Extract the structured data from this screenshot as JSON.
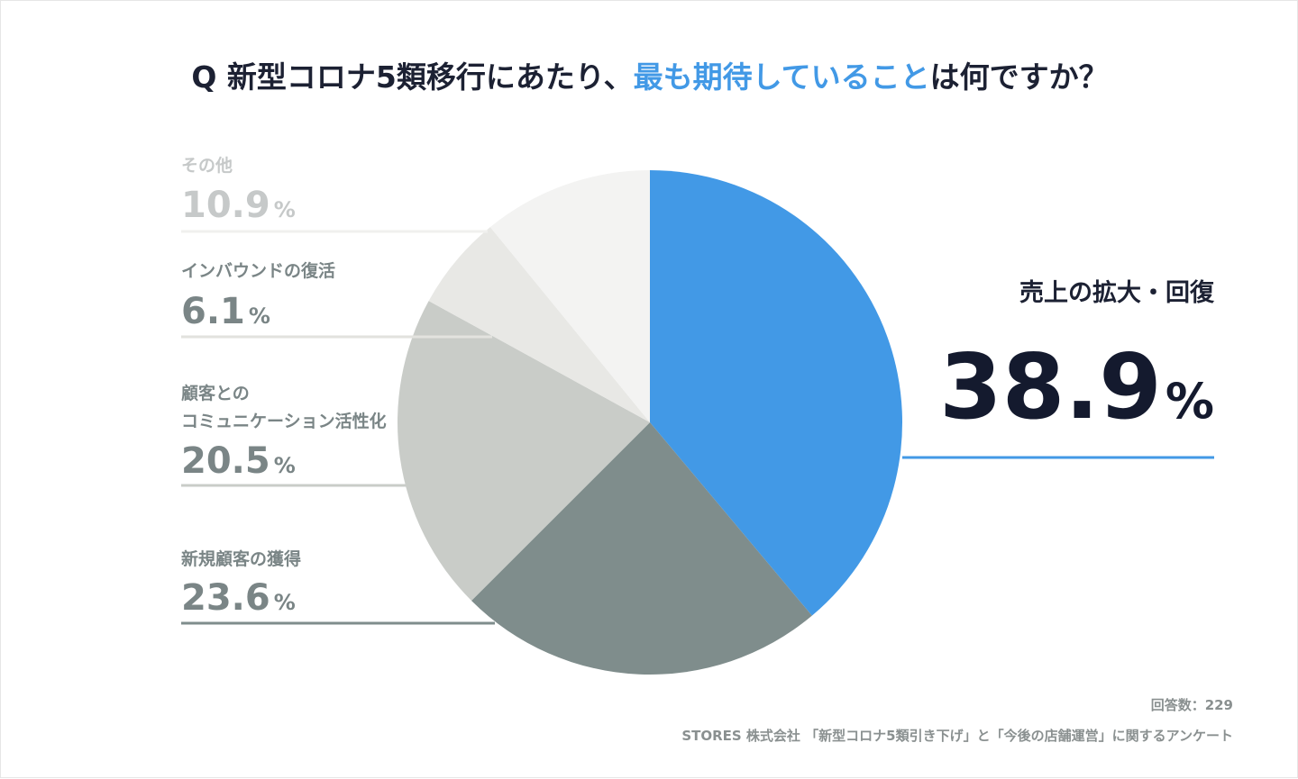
{
  "chart_data": {
    "type": "pie",
    "title": {
      "prefix": "Q 新型コロナ5類移行にあたり、",
      "highlight": "最も期待していること",
      "suffix": "は何ですか？"
    },
    "slices": [
      {
        "label": "売上の拡大・回復",
        "value": 38.9,
        "display": "38.9",
        "color": "#4299e6"
      },
      {
        "label": "新規顧客の獲得",
        "value": 23.6,
        "display": "23.6",
        "color": "#7f8d8c"
      },
      {
        "label": "顧客との\nコミュニケーション活性化",
        "value": 20.5,
        "display": "20.5",
        "color": "#c9ccc8"
      },
      {
        "label": "インバウンドの復活",
        "value": 6.1,
        "display": "6.1",
        "color": "#e8e8e5"
      },
      {
        "label": "その他",
        "value": 10.9,
        "display": "10.9",
        "color": "#f3f3f2"
      }
    ],
    "unit": "%",
    "colors": {
      "title": "#1c2133",
      "highlight": "#4299e6",
      "main_value": "#141a2e",
      "label_text": [
        "#1c2133",
        "#7a8586",
        "#7a8586",
        "#7a8586",
        "#c6c9c9"
      ],
      "line": [
        "#4299e6",
        "#7f8d8c",
        "#c9ccc8",
        "#e2e2de",
        "#f0f0ee"
      ]
    }
  },
  "footer": {
    "respondents": "回答数：229",
    "source": "STORES 株式会社 「新型コロナ5類引き下げ」と「今後の店舗運営」に関するアンケート"
  }
}
